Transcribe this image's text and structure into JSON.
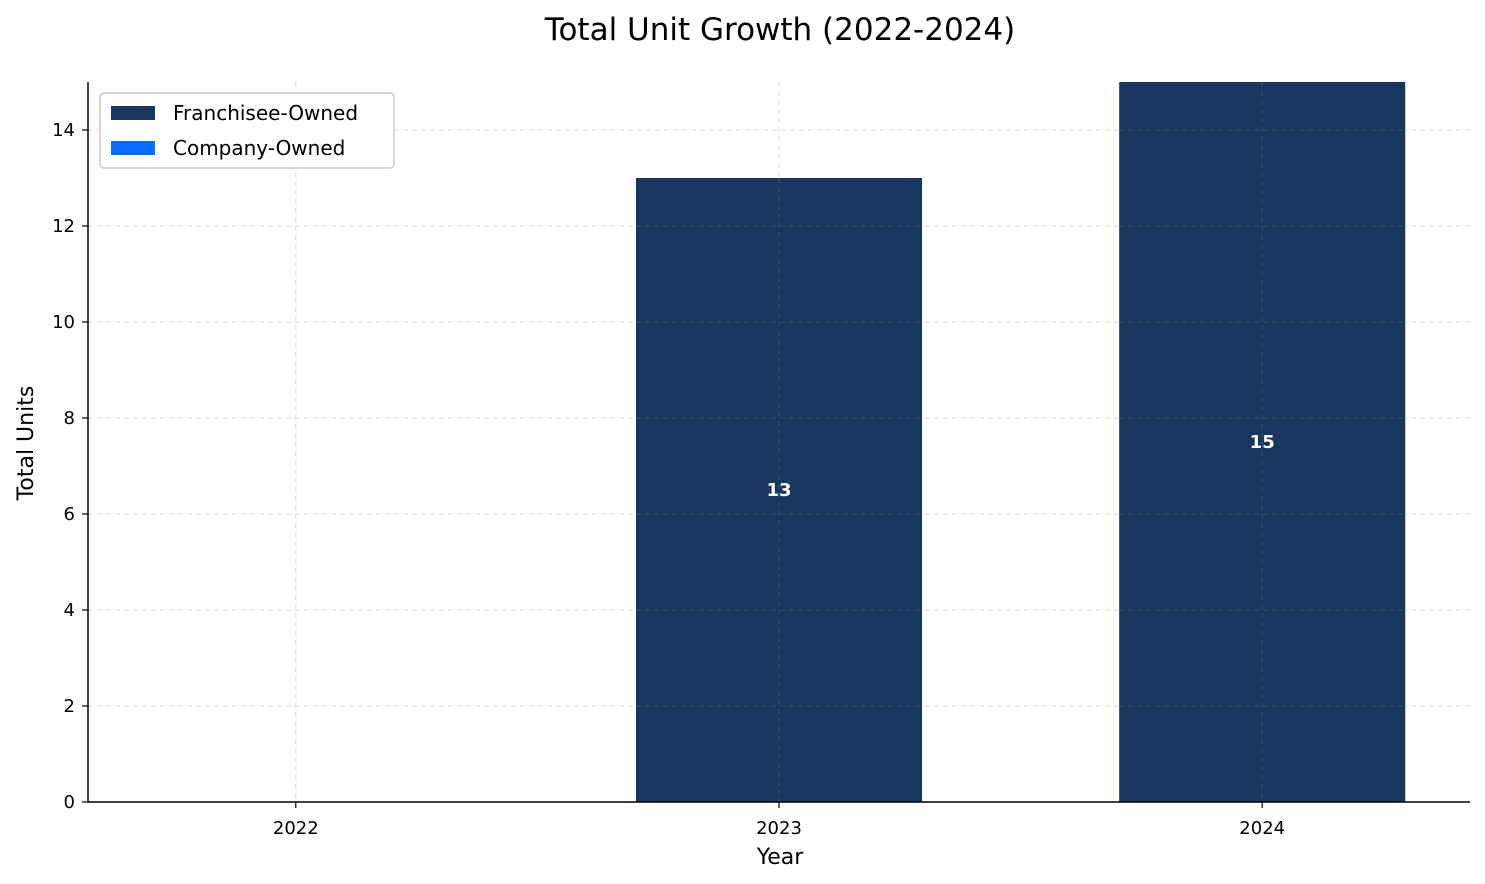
{
  "chart_data": {
    "type": "bar",
    "stacked": true,
    "title": "Total Unit Growth (2022-2024)",
    "xlabel": "Year",
    "ylabel": "Total Units",
    "categories": [
      "2022",
      "2023",
      "2024"
    ],
    "series": [
      {
        "name": "Franchisee-Owned",
        "values": [
          0,
          13,
          15
        ],
        "color": "#17375e"
      },
      {
        "name": "Company-Owned",
        "values": [
          0,
          0,
          0
        ],
        "color": "#0a6cff"
      }
    ],
    "data_labels": [
      "",
      "13",
      "15"
    ],
    "ylim": [
      0,
      15
    ],
    "yticks": [
      0,
      2,
      4,
      6,
      8,
      10,
      12,
      14
    ],
    "grid": true,
    "legend_position": "top-left"
  }
}
